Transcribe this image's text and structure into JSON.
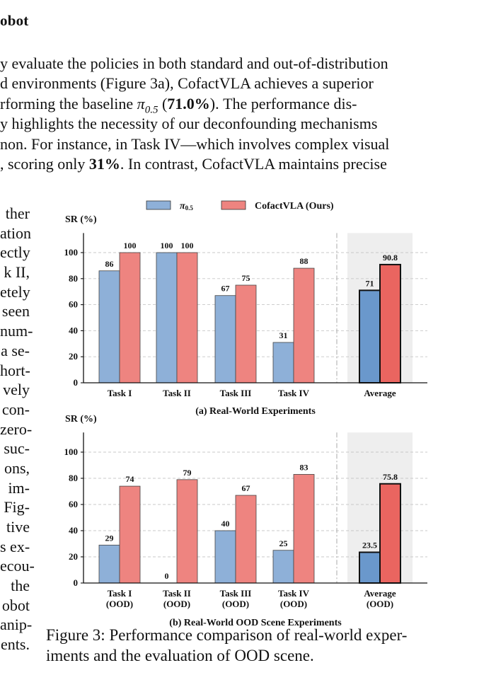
{
  "section": {
    "heading": "obot"
  },
  "paragraph": {
    "lines": [
      {
        "parts": [
          {
            "t": "y evaluate the policies in both standard and out-of-distribution"
          }
        ]
      },
      {
        "parts": [
          {
            "t": "d environments (Figure 3a), CofactVLA achieves a superior"
          }
        ]
      },
      {
        "parts": [
          {
            "t": "rforming the baseline "
          },
          {
            "t": "π",
            "i": true
          },
          {
            "t": "0.5",
            "sub": true
          },
          {
            "t": " ("
          },
          {
            "t": "71.0%",
            "b": true
          },
          {
            "t": ").  The performance dis-"
          }
        ]
      },
      {
        "parts": [
          {
            "t": "y highlights the necessity of our deconfounding mechanisms"
          }
        ]
      },
      {
        "parts": [
          {
            "t": "non. For instance, in Task IV—which involves complex visual"
          }
        ]
      },
      {
        "parts": [
          {
            "t": ", scoring only "
          },
          {
            "t": "31%",
            "b": true
          },
          {
            "t": ". In contrast, CofactVLA maintains precise"
          }
        ]
      }
    ]
  },
  "side_text": {
    "lines": [
      "ther",
      "ation",
      "ectly",
      "k II,",
      "etely",
      "seen",
      "num-",
      "a se-",
      "hort-",
      "vely",
      "con-",
      "zero-",
      "suc-",
      "ons,",
      "im-",
      "Fig-",
      "tive",
      "s ex-",
      "ecou-",
      "the",
      "obot",
      "anip-",
      "ents."
    ]
  },
  "legend": {
    "baseline_symbol": "π",
    "baseline_sub": "0.5",
    "ours": "CofactVLA (Ours)"
  },
  "colors": {
    "baseline": "#8eb0d8",
    "ours": "#ee8480",
    "avg_baseline": "#6a98cc",
    "avg_ours": "#ea6560",
    "avg_band": "#eeeeee",
    "grid": "#c8c8c8"
  },
  "figure": {
    "caption_lines": [
      "Figure 3: Performance comparison of real-world exper-",
      "iments and the evaluation of OOD scene."
    ]
  },
  "chart_data": [
    {
      "type": "bar",
      "title": "(a) Real-World Experiments",
      "ylabel": "SR (%)",
      "ylim": [
        0,
        115
      ],
      "yticks": [
        0,
        20,
        40,
        60,
        80,
        100
      ],
      "grid": true,
      "legend": "top",
      "categories": [
        [
          "Task I"
        ],
        [
          "Task II"
        ],
        [
          "Task III"
        ],
        [
          "Task IV"
        ],
        [
          "Average"
        ]
      ],
      "series": [
        {
          "name": "π0.5",
          "values": [
            86,
            100,
            67,
            31,
            71
          ],
          "labels": [
            "86",
            "100",
            "67",
            "31",
            "71"
          ]
        },
        {
          "name": "CofactVLA (Ours)",
          "values": [
            100,
            100,
            75,
            88,
            90.8
          ],
          "labels": [
            "100",
            "100",
            "75",
            "88",
            "90.8"
          ]
        }
      ]
    },
    {
      "type": "bar",
      "title": "(b) Real-World OOD Scene Experiments",
      "ylabel": "SR (%)",
      "ylim": [
        0,
        115
      ],
      "yticks": [
        0,
        20,
        40,
        60,
        80,
        100
      ],
      "grid": true,
      "categories": [
        [
          "Task I",
          "(OOD)"
        ],
        [
          "Task II",
          "(OOD)"
        ],
        [
          "Task III",
          "(OOD)"
        ],
        [
          "Task IV",
          "(OOD)"
        ],
        [
          "Average",
          "(OOD)"
        ]
      ],
      "series": [
        {
          "name": "π0.5",
          "values": [
            29,
            0,
            40,
            25,
            23.5
          ],
          "labels": [
            "29",
            "0",
            "40",
            "25",
            "23.5"
          ]
        },
        {
          "name": "CofactVLA (Ours)",
          "values": [
            74,
            79,
            67,
            83,
            75.8
          ],
          "labels": [
            "74",
            "79",
            "67",
            "83",
            "75.8"
          ]
        }
      ]
    }
  ]
}
